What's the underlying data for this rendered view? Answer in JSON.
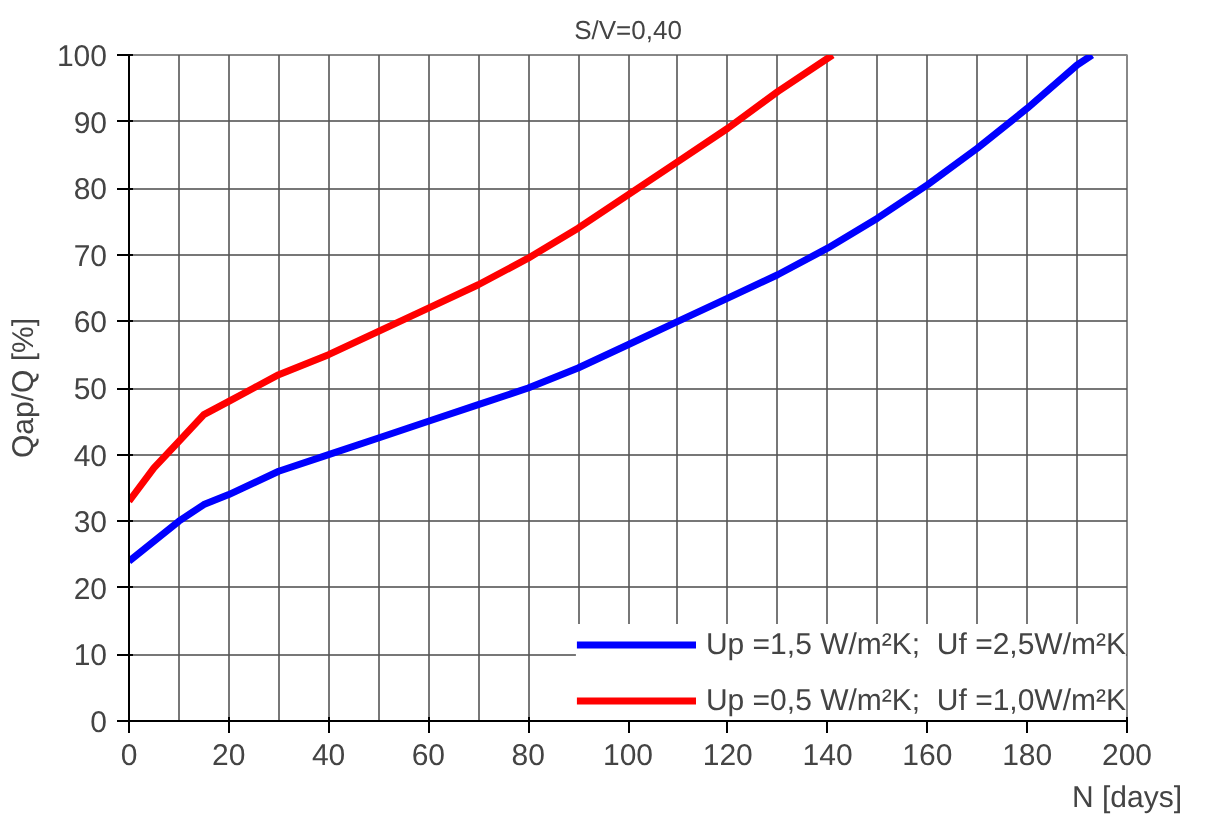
{
  "chart_data": {
    "type": "line",
    "title": "S/V=0,40",
    "xlabel": "N [days]",
    "ylabel": "Qap/Q [%]",
    "xlim": [
      0,
      200
    ],
    "ylim": [
      0,
      100
    ],
    "xticks": [
      0,
      20,
      40,
      60,
      80,
      100,
      120,
      140,
      160,
      180,
      200
    ],
    "yticks": [
      0,
      10,
      20,
      30,
      40,
      50,
      60,
      70,
      80,
      90,
      100
    ],
    "grid": true,
    "legend": "bottom right",
    "marker": "none",
    "line_style": "solid",
    "series": [
      {
        "name": "Up =1,5 W/m²K;  Uf =2,5W/m²K",
        "color": "#0000ff",
        "x": [
          0,
          5,
          10,
          15,
          20,
          30,
          40,
          50,
          60,
          70,
          80,
          90,
          100,
          110,
          120,
          130,
          140,
          150,
          160,
          170,
          180,
          190,
          193
        ],
        "values": [
          24,
          27,
          30,
          32.5,
          34,
          37.5,
          40,
          42.5,
          45,
          47.5,
          50,
          53,
          56.5,
          60,
          63.5,
          67,
          71,
          75.5,
          80.5,
          86,
          92,
          98.5,
          100
        ]
      },
      {
        "name": "Up =0,5 W/m²K;  Uf =1,0W/m²K",
        "color": "#ff0000",
        "x": [
          0,
          5,
          10,
          15,
          20,
          25,
          30,
          40,
          50,
          60,
          70,
          80,
          90,
          100,
          110,
          120,
          130,
          141
        ],
        "values": [
          33,
          38,
          42,
          46,
          48,
          50,
          52,
          55,
          58.5,
          62,
          65.5,
          69.5,
          74,
          79,
          84,
          89,
          94.5,
          100
        ]
      }
    ]
  }
}
